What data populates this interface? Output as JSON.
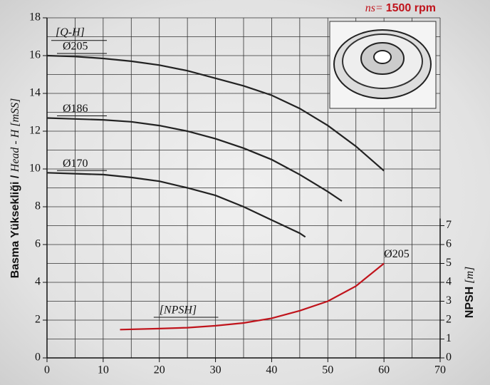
{
  "chart_data": {
    "type": "line",
    "speed_label": "ns=",
    "speed_value": "1500 rpm",
    "ylabel_parts": [
      "Basma Yüksekliği",
      " / ",
      "Head - H [mSS]"
    ],
    "y2label_parts": [
      "NPSH",
      " [m]"
    ],
    "annotations": [
      "[Q-H]",
      "[NPSH]"
    ],
    "xlim": [
      0,
      70
    ],
    "xticks": [
      0,
      10,
      20,
      30,
      40,
      50,
      60,
      70
    ],
    "ylim": [
      0,
      18
    ],
    "yticks": [
      0,
      2,
      4,
      6,
      8,
      10,
      12,
      14,
      16,
      18
    ],
    "y2lim": [
      0,
      18
    ],
    "y2ticks": [
      0,
      1,
      2,
      3,
      4,
      5,
      6,
      7
    ],
    "grid": true,
    "series": [
      {
        "name": "Ø205",
        "color": "#222222",
        "x": [
          0,
          5,
          10,
          15,
          20,
          25,
          30,
          35,
          40,
          45,
          50,
          55,
          60
        ],
        "values": [
          16.0,
          15.95,
          15.85,
          15.7,
          15.5,
          15.2,
          14.8,
          14.4,
          13.9,
          13.2,
          12.3,
          11.2,
          9.9
        ]
      },
      {
        "name": "Ø186",
        "color": "#222222",
        "x": [
          0,
          5,
          10,
          15,
          20,
          25,
          30,
          35,
          40,
          45,
          50,
          52.5
        ],
        "values": [
          12.7,
          12.65,
          12.6,
          12.5,
          12.3,
          12.0,
          11.6,
          11.1,
          10.5,
          9.7,
          8.8,
          8.3
        ]
      },
      {
        "name": "Ø170",
        "color": "#222222",
        "x": [
          0,
          5,
          10,
          15,
          20,
          25,
          30,
          35,
          40,
          45,
          46
        ],
        "values": [
          9.8,
          9.75,
          9.7,
          9.55,
          9.35,
          9.0,
          8.6,
          8.0,
          7.3,
          6.6,
          6.4
        ]
      },
      {
        "name": "Ø205",
        "color": "#c0141c",
        "axis": "y2",
        "x": [
          13,
          20,
          25,
          30,
          35,
          40,
          45,
          50,
          55,
          60
        ],
        "values": [
          1.5,
          1.55,
          1.6,
          1.7,
          1.85,
          2.1,
          2.5,
          3.0,
          3.8,
          5.0
        ]
      }
    ]
  }
}
